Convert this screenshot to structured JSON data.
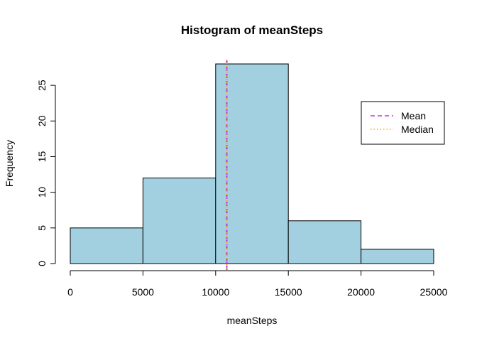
{
  "chart_data": {
    "type": "bar",
    "title": "Histogram of meanSteps",
    "xlabel": "meanSteps",
    "ylabel": "Frequency",
    "bins": [
      {
        "from": 0,
        "to": 5000,
        "count": 5
      },
      {
        "from": 5000,
        "to": 10000,
        "count": 12
      },
      {
        "from": 10000,
        "to": 15000,
        "count": 28
      },
      {
        "from": 15000,
        "to": 20000,
        "count": 6
      },
      {
        "from": 20000,
        "to": 25000,
        "count": 2
      }
    ],
    "xlim": [
      0,
      25000
    ],
    "ylim": [
      0,
      28
    ],
    "x_ticks": [
      0,
      5000,
      10000,
      15000,
      20000,
      25000
    ],
    "y_ticks": [
      0,
      5,
      10,
      15,
      20,
      25
    ],
    "bar_fill": "#a2d0e0",
    "bar_stroke": "#000000",
    "reference_lines": [
      {
        "name": "Mean",
        "value": 10766,
        "color": "#b23aee",
        "style": "dashed"
      },
      {
        "name": "Median",
        "value": 10766,
        "color": "#ffa500",
        "style": "dotted"
      }
    ],
    "legend": {
      "position": "top-right",
      "entries": [
        "Mean",
        "Median"
      ]
    },
    "grid": false
  }
}
